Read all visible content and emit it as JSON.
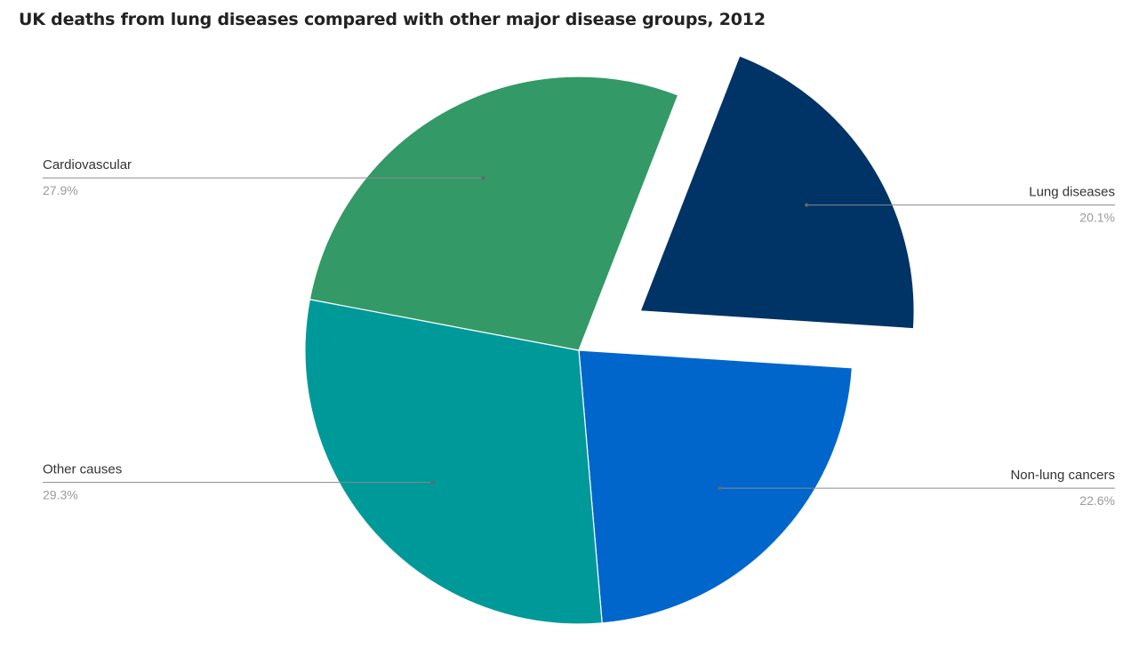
{
  "chart_data": {
    "type": "pie",
    "title": "UK deaths from lung diseases compared with other major disease groups, 2012",
    "slices": [
      {
        "label": "Lung diseases",
        "value": 20.1,
        "value_label": "20.1%",
        "color": "#003366",
        "exploded": true
      },
      {
        "label": "Non-lung cancers",
        "value": 22.6,
        "value_label": "22.6%",
        "color": "#0066cc",
        "exploded": false
      },
      {
        "label": "Other causes",
        "value": 29.3,
        "value_label": "29.3%",
        "color": "#009999",
        "exploded": false
      },
      {
        "label": "Cardiovascular",
        "value": 27.9,
        "value_label": "27.9%",
        "color": "#339966",
        "exploded": false
      }
    ]
  }
}
